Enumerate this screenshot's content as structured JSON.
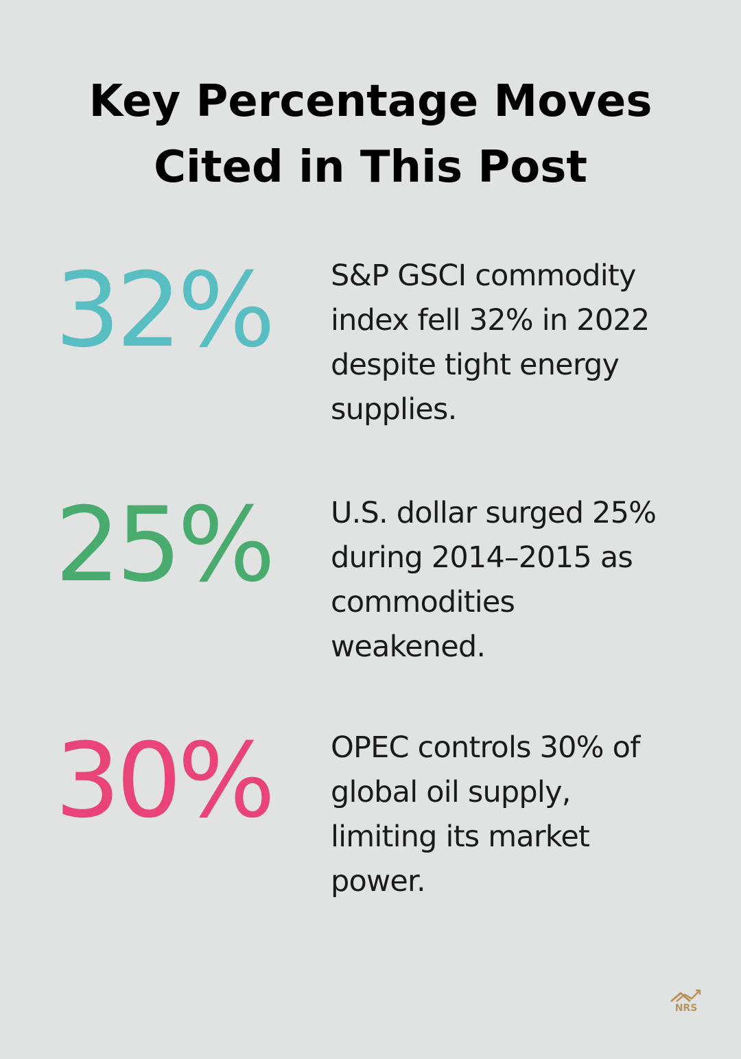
{
  "title": {
    "line1": "Key Percentage Moves",
    "line2": "Cited in This Post"
  },
  "stats": [
    {
      "value": "32%",
      "color": "#58bec2",
      "lines": [
        "S&P GSCI commodity",
        "index fell 32% in 2022",
        "despite tight energy",
        "supplies."
      ]
    },
    {
      "value": "25%",
      "color": "#4aab6e",
      "lines": [
        "U.S. dollar surged 25%",
        "during 2014–2015 as",
        "commodities",
        "weakened."
      ]
    },
    {
      "value": "30%",
      "color": "#e8447a",
      "lines": [
        "OPEC controls 30% of",
        "global oil supply,",
        "limiting its market",
        "power."
      ]
    }
  ],
  "logo": {
    "text": "NRS",
    "icon": "house-chart-icon",
    "color": "#b8935c"
  }
}
